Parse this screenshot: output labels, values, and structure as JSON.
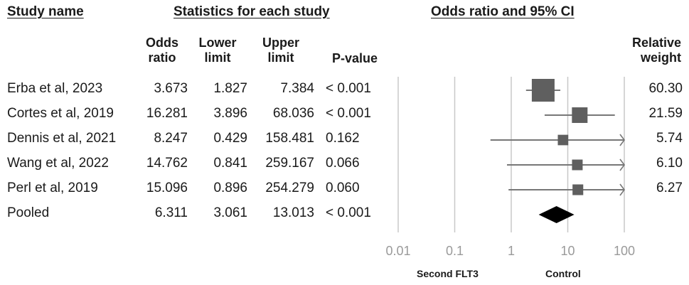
{
  "headers": {
    "study": "Study name",
    "stats": "Statistics for each study",
    "plot": "Odds ratio and 95% CI"
  },
  "columns": {
    "odds_ratio": [
      "Odds",
      "ratio"
    ],
    "lower": [
      "Lower",
      "limit"
    ],
    "upper": [
      "Upper",
      "limit"
    ],
    "p_value": "P-value",
    "weight": [
      "Relative",
      "weight"
    ]
  },
  "axis_labels": {
    "left": "Second FLT3",
    "right": "Control"
  },
  "colors": {
    "marker": "#5f5f5f",
    "line": "#777777",
    "grid": "#c8c8c8",
    "pooled": "#000000"
  },
  "chart_data": {
    "type": "forest",
    "scale": "log",
    "xlim": [
      0.01,
      100
    ],
    "ticks": [
      0.01,
      0.1,
      1,
      10,
      100
    ],
    "tick_labels": [
      "0.01",
      "0.1",
      "1",
      "10",
      "100"
    ],
    "rows": [
      {
        "study": "Erba et al, 2023",
        "or": 3.673,
        "lower": 1.827,
        "upper": 7.384,
        "p": "< 0.001",
        "weight": 60.3,
        "or_text": "3.673",
        "lower_text": "1.827",
        "upper_text": "7.384",
        "weight_text": "60.30"
      },
      {
        "study": "Cortes et al, 2019",
        "or": 16.281,
        "lower": 3.896,
        "upper": 68.036,
        "p": "< 0.001",
        "weight": 21.59,
        "or_text": "16.281",
        "lower_text": "3.896",
        "upper_text": "68.036",
        "weight_text": "21.59"
      },
      {
        "study": "Dennis et al, 2021",
        "or": 8.247,
        "lower": 0.429,
        "upper": 158.481,
        "p": "0.162",
        "weight": 5.74,
        "or_text": "8.247",
        "lower_text": "0.429",
        "upper_text": "158.481",
        "weight_text": "5.74"
      },
      {
        "study": "Wang et al, 2022",
        "or": 14.762,
        "lower": 0.841,
        "upper": 259.167,
        "p": "0.066",
        "weight": 6.1,
        "or_text": "14.762",
        "lower_text": "0.841",
        "upper_text": "259.167",
        "weight_text": "6.10"
      },
      {
        "study": "Perl et al, 2019",
        "or": 15.096,
        "lower": 0.896,
        "upper": 254.279,
        "p": "0.060",
        "weight": 6.27,
        "or_text": "15.096",
        "lower_text": "0.896",
        "upper_text": "254.279",
        "weight_text": "6.27"
      }
    ],
    "pooled": {
      "study": "Pooled",
      "or": 6.311,
      "lower": 3.061,
      "upper": 13.013,
      "p": "< 0.001",
      "or_text": "6.311",
      "lower_text": "3.061",
      "upper_text": "13.013"
    }
  }
}
